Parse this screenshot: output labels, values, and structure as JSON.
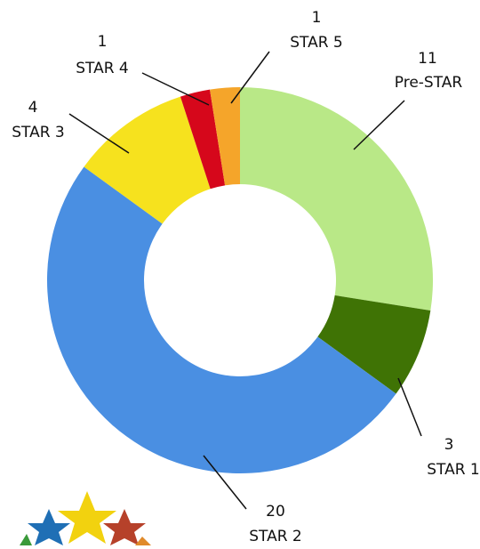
{
  "chart_data": {
    "type": "pie",
    "donut": true,
    "categories": [
      "Pre-STAR",
      "STAR 1",
      "STAR 2",
      "STAR 3",
      "STAR 4",
      "STAR 5"
    ],
    "values": [
      11,
      3,
      20,
      4,
      1,
      1
    ],
    "colors": [
      "#b9e887",
      "#3f7305",
      "#4a8fe2",
      "#f6e21e",
      "#d6071b",
      "#f5a52a"
    ]
  }
}
